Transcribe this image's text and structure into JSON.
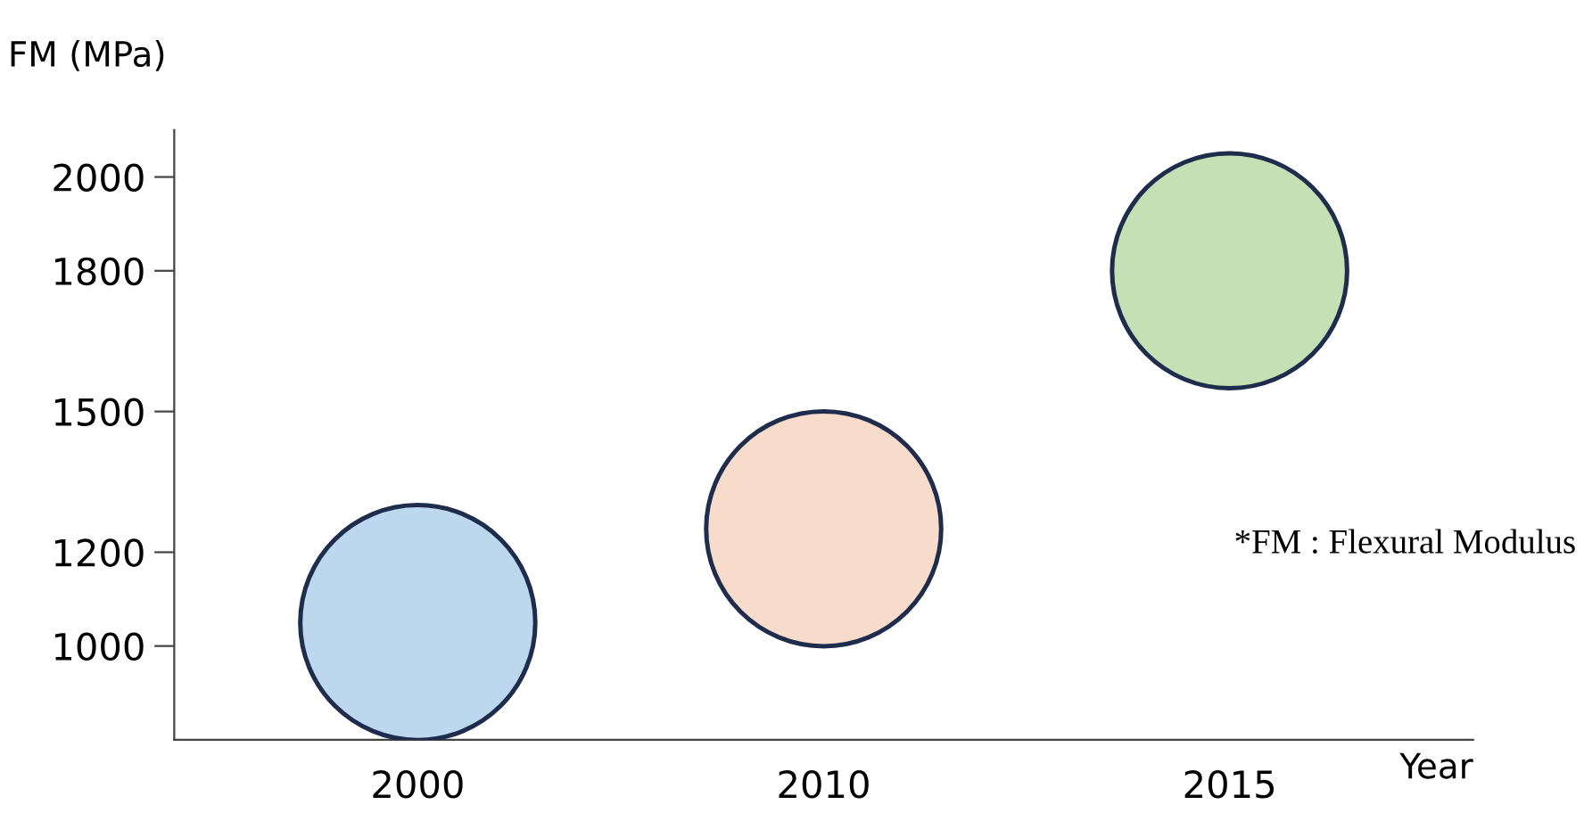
{
  "chart_data": {
    "type": "scatter",
    "ylabel": "FM (MPa)",
    "xlabel": "Year",
    "categories": [
      "2000",
      "2010",
      "2015"
    ],
    "values": [
      1050,
      1250,
      1800
    ],
    "marker": "circle",
    "colors": [
      "#bdd7ee",
      "#f8dccb",
      "#c5e0b4"
    ],
    "ylim": [
      800,
      2100
    ],
    "yticks": [
      1000,
      1200,
      1500,
      1800,
      2000
    ],
    "grid": false,
    "legend": false,
    "annotations": [
      "*FM : Flexural Modulus"
    ]
  }
}
